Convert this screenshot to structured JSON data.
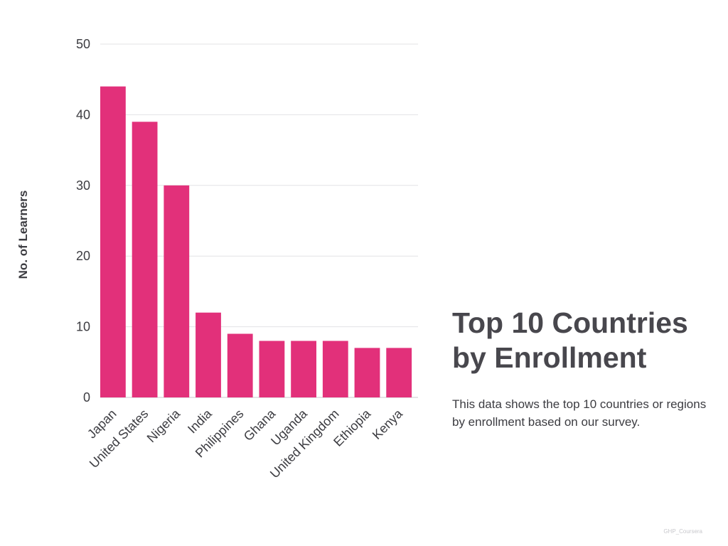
{
  "header": {
    "title_line1": "Top 10 Countries",
    "title_line2": "by Enrollment",
    "description": "This data shows the top 10 countries or regions by enrollment based on our survey."
  },
  "footer": {
    "credit": "GHP_Coursera"
  },
  "colors": {
    "bar": "#e2307a",
    "text": "#3c3c41",
    "title": "#48474d",
    "grid": "#e3e3e6"
  },
  "chart_data": {
    "type": "bar",
    "title": "",
    "xlabel": "",
    "ylabel": "No. of Learners",
    "ylim": [
      0,
      50
    ],
    "yticks": [
      0,
      10,
      20,
      30,
      40,
      50
    ],
    "grid": true,
    "categories": [
      "Japan",
      "United States",
      "Nigeria",
      "India",
      "Philippines",
      "Ghana",
      "Uganda",
      "United Kingdom",
      "Ethiopia",
      "Kenya"
    ],
    "values": [
      44,
      39,
      30,
      12,
      9,
      8,
      8,
      8,
      7,
      7
    ]
  }
}
